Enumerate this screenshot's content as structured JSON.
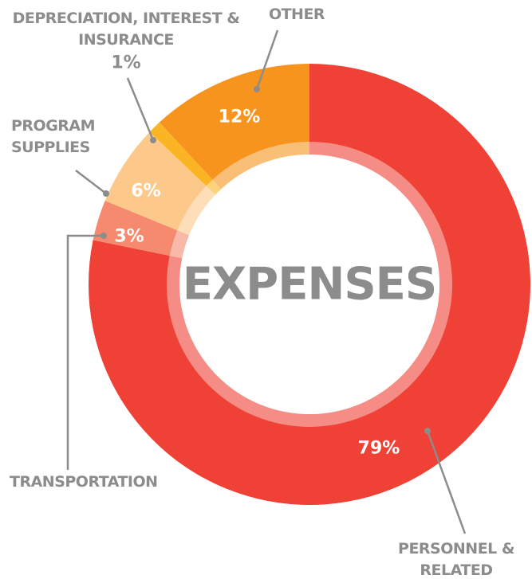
{
  "chart_data": {
    "type": "pie",
    "title": "EXPENSES",
    "categories": [
      "PERSONNEL & RELATED",
      "TRANSPORTATION",
      "PROGRAM SUPPLIES",
      "DEPRECIATION, INTEREST & INSURANCE",
      "OTHER"
    ],
    "values": [
      79,
      3,
      6,
      1,
      12
    ],
    "value_labels": [
      "79%",
      "3%",
      "6%",
      "1%",
      "12%"
    ],
    "colors": [
      "#ef4136",
      "#f58a6e",
      "#fdc98a",
      "#fbb424",
      "#f7941d"
    ]
  }
}
